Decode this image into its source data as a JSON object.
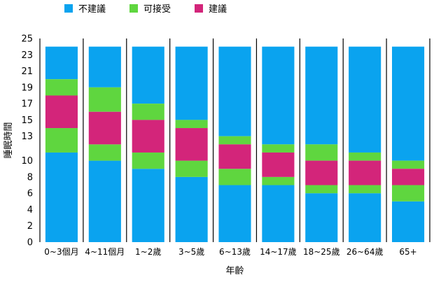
{
  "chart_data": {
    "type": "bar",
    "stacked": true,
    "xlabel": "年齡",
    "ylabel": "睡眠時間",
    "ylim": [
      0,
      25
    ],
    "yticks": [
      0,
      2,
      4,
      6,
      8,
      10,
      13,
      15,
      17,
      19,
      21,
      23,
      25
    ],
    "grid": false,
    "legend_position": "top-left",
    "categories": [
      "0~3個月",
      "4~11個月",
      "1~2歲",
      "3~5歲",
      "6~13歲",
      "14~17歲",
      "18~25歲",
      "26~64歲",
      "65+"
    ],
    "series": [
      {
        "name": "不建議",
        "color": "#0aa3ef",
        "segments": [
          [
            [
              0,
              11
            ],
            [
              20,
              24
            ]
          ],
          [
            [
              0,
              10
            ],
            [
              19,
              24
            ]
          ],
          [
            [
              0,
              9
            ],
            [
              17,
              24
            ]
          ],
          [
            [
              0,
              8
            ],
            [
              15,
              24
            ]
          ],
          [
            [
              0,
              7
            ],
            [
              13,
              24
            ]
          ],
          [
            [
              0,
              7
            ],
            [
              12,
              24
            ]
          ],
          [
            [
              0,
              6
            ],
            [
              12,
              24
            ]
          ],
          [
            [
              0,
              6
            ],
            [
              11,
              24
            ]
          ],
          [
            [
              0,
              5
            ],
            [
              10,
              24
            ]
          ]
        ]
      },
      {
        "name": "可接受",
        "color": "#5fd63f",
        "segments": [
          [
            [
              11,
              14
            ],
            [
              18,
              20
            ]
          ],
          [
            [
              10,
              12
            ],
            [
              16,
              19
            ]
          ],
          [
            [
              9,
              11
            ],
            [
              15,
              17
            ]
          ],
          [
            [
              8,
              10
            ],
            [
              14,
              15
            ]
          ],
          [
            [
              7,
              9
            ],
            [
              12,
              13
            ]
          ],
          [
            [
              7,
              8
            ],
            [
              11,
              12
            ]
          ],
          [
            [
              6,
              7
            ],
            [
              10,
              12
            ]
          ],
          [
            [
              6,
              7
            ],
            [
              10,
              11
            ]
          ],
          [
            [
              5,
              7
            ],
            [
              9,
              10
            ]
          ]
        ]
      },
      {
        "name": "建議",
        "color": "#d3257a",
        "segments": [
          [
            [
              14,
              18
            ]
          ],
          [
            [
              12,
              16
            ]
          ],
          [
            [
              11,
              15
            ]
          ],
          [
            [
              10,
              14
            ]
          ],
          [
            [
              9,
              12
            ]
          ],
          [
            [
              8,
              11
            ]
          ],
          [
            [
              7,
              10
            ]
          ],
          [
            [
              7,
              10
            ]
          ],
          [
            [
              7,
              9
            ]
          ]
        ]
      }
    ]
  }
}
